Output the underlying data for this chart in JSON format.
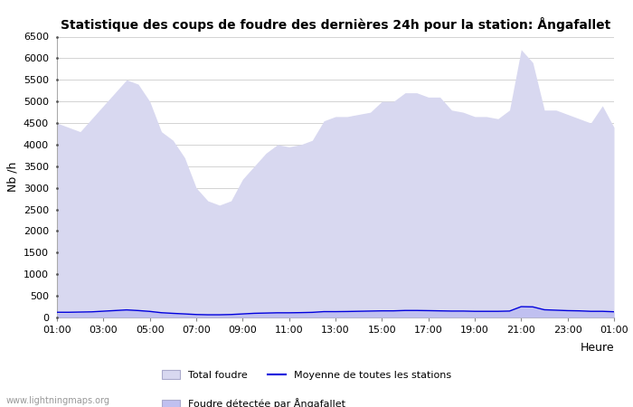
{
  "title": "Statistique des coups de foudre des dernières 24h pour la station: Ångafallet",
  "ylabel": "Nb /h",
  "xlabel_right": "Heure",
  "watermark": "www.lightningmaps.org",
  "x_ticks": [
    "01:00",
    "03:00",
    "05:00",
    "07:00",
    "09:00",
    "11:00",
    "13:00",
    "15:00",
    "17:00",
    "19:00",
    "21:00",
    "23:00",
    "01:00"
  ],
  "ylim": [
    0,
    6500
  ],
  "yticks": [
    0,
    500,
    1000,
    1500,
    2000,
    2500,
    3000,
    3500,
    4000,
    4500,
    5000,
    5500,
    6000,
    6500
  ],
  "bg_color": "#ffffff",
  "fill_color_total": "#d8d8f0",
  "fill_color_station": "#c0c0f0",
  "line_color_mean": "#0000dd",
  "grid_color": "#cccccc",
  "legend_total_label": "Total foudre",
  "legend_mean_label": "Moyenne de toutes les stations",
  "legend_station_label": "Foudre détectée par Ångafallet",
  "total_x": [
    0,
    0.5,
    1,
    1.5,
    2,
    2.5,
    3,
    3.5,
    4,
    4.5,
    5,
    5.5,
    6,
    6.5,
    7,
    7.5,
    8,
    8.5,
    9,
    9.5,
    10,
    10.5,
    11,
    11.5,
    12,
    12.5,
    13,
    13.5,
    14,
    14.5,
    15,
    15.5,
    16,
    16.5,
    17,
    17.5,
    18,
    18.5,
    19,
    19.5,
    20,
    20.5,
    21,
    21.5,
    22,
    22.5,
    23,
    23.5,
    24
  ],
  "total_y": [
    4500,
    4400,
    4300,
    4600,
    4900,
    5200,
    5500,
    5400,
    5000,
    4300,
    4100,
    3700,
    3000,
    2700,
    2600,
    2700,
    3200,
    3500,
    3800,
    4000,
    3950,
    4000,
    4100,
    4550,
    4650,
    4650,
    4700,
    4750,
    5000,
    5000,
    5200,
    5200,
    5100,
    5100,
    4800,
    4750,
    4650,
    4650,
    4600,
    4800,
    6200,
    5900,
    4800,
    4800,
    4700,
    4600,
    4500,
    4900,
    4400
  ],
  "station_y": [
    100,
    105,
    110,
    120,
    140,
    160,
    175,
    165,
    145,
    110,
    95,
    80,
    65,
    60,
    60,
    65,
    80,
    95,
    100,
    105,
    105,
    110,
    115,
    130,
    130,
    135,
    140,
    145,
    150,
    150,
    160,
    160,
    155,
    150,
    145,
    145,
    140,
    140,
    140,
    145,
    245,
    240,
    175,
    165,
    155,
    150,
    140,
    140,
    130
  ],
  "mean_y": [
    120,
    120,
    125,
    130,
    145,
    160,
    175,
    160,
    140,
    110,
    95,
    82,
    68,
    62,
    62,
    68,
    82,
    96,
    102,
    108,
    108,
    112,
    118,
    135,
    135,
    138,
    143,
    148,
    153,
    153,
    162,
    162,
    158,
    153,
    148,
    148,
    142,
    142,
    142,
    148,
    250,
    245,
    178,
    168,
    158,
    153,
    142,
    142,
    132
  ]
}
